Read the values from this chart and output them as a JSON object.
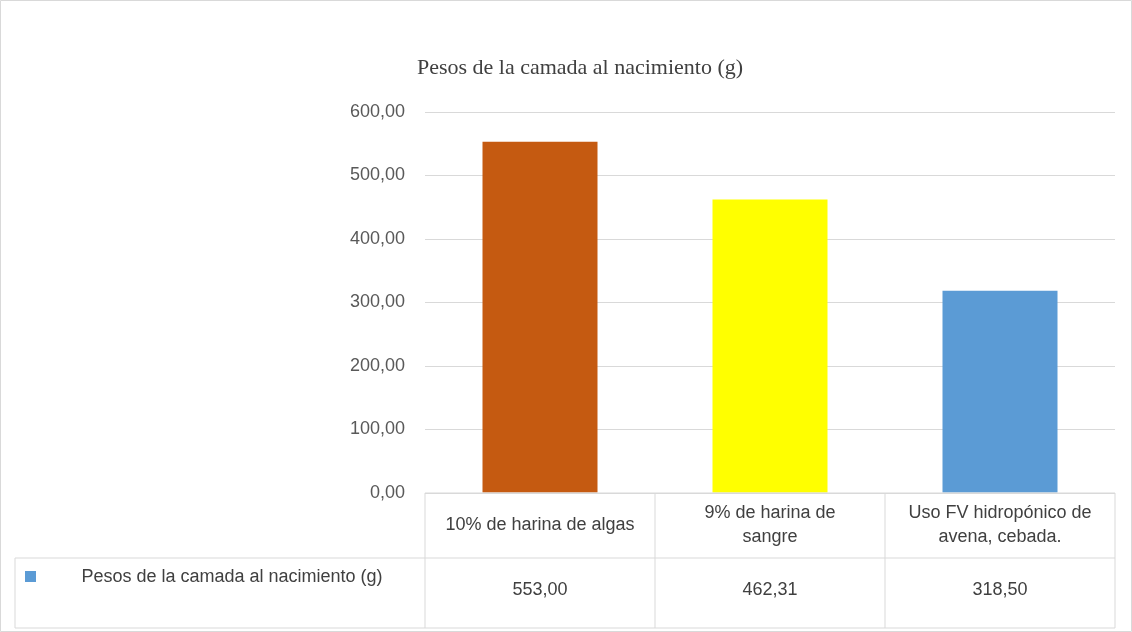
{
  "chart_data": {
    "type": "bar",
    "title": "Pesos de la camada al nacimiento (g)",
    "categories": [
      "10% de harina de algas",
      "9% de harina de sangre",
      "Uso FV hidropónico de avena, cebada."
    ],
    "series": [
      {
        "name": "Pesos de la camada al nacimiento (g)",
        "color": "#5b9bd5",
        "colors": [
          "#c55a11",
          "#ffff00",
          "#5b9bd5"
        ],
        "values": [
          553.0,
          462.31,
          318.5
        ],
        "value_labels": [
          "553,00",
          "462,31",
          "318,50"
        ]
      }
    ],
    "ylim": [
      0,
      600
    ],
    "yticks": [
      {
        "value": 0,
        "label": "0,00"
      },
      {
        "value": 100,
        "label": "100,00"
      },
      {
        "value": 200,
        "label": "200,00"
      },
      {
        "value": 300,
        "label": "300,00"
      },
      {
        "value": 400,
        "label": "400,00"
      },
      {
        "value": 500,
        "label": "500,00"
      },
      {
        "value": 600,
        "label": "600,00"
      }
    ],
    "grid": "y",
    "legend": "bottom"
  }
}
